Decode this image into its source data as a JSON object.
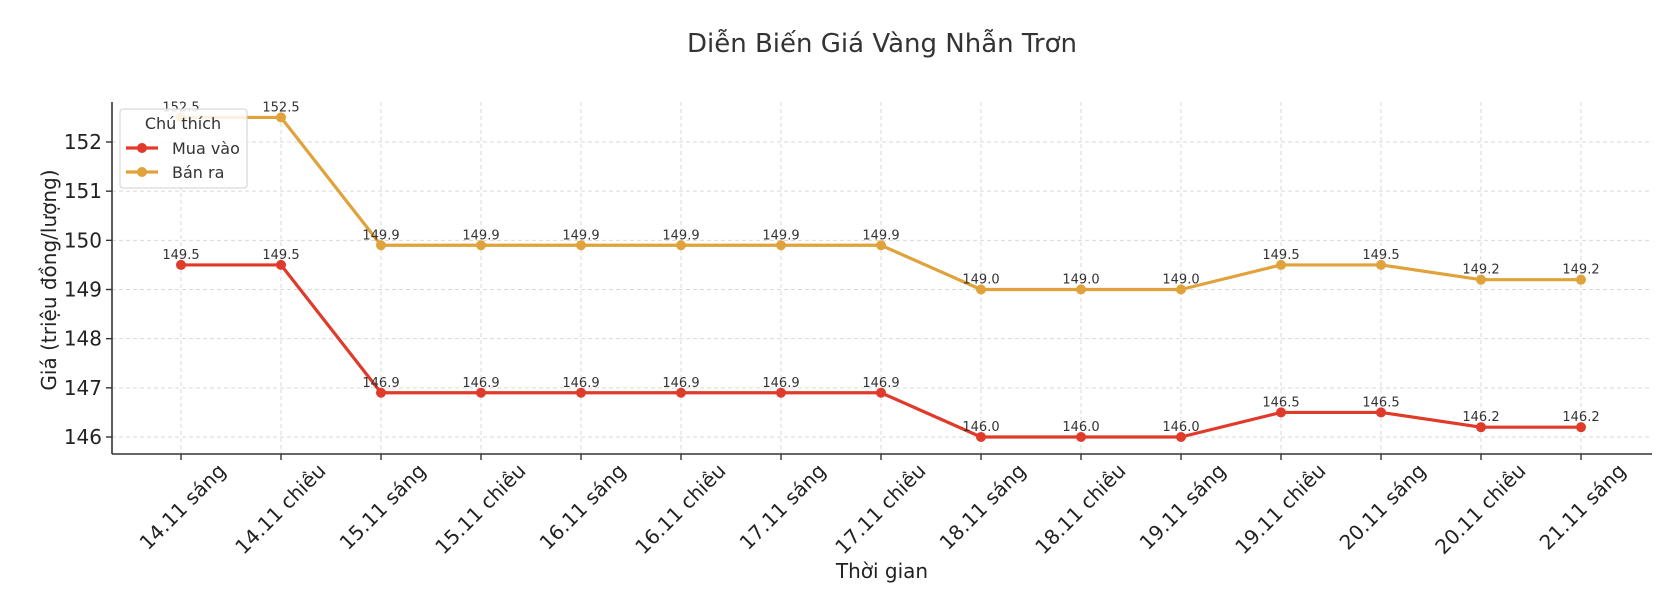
{
  "chart_data": {
    "type": "line",
    "title": "Diễn Biến Giá Vàng Nhẫn Trơn",
    "xlabel": "Thời gian",
    "ylabel": "Giá (triệu đồng/lượng)",
    "categories": [
      "14.11 sáng",
      "14.11 chiều",
      "15.11 sáng",
      "15.11 chiều",
      "16.11 sáng",
      "16.11 chiều",
      "17.11 sáng",
      "17.11 chiều",
      "18.11 sáng",
      "18.11 chiều",
      "19.11 sáng",
      "19.11 chiều",
      "20.11 sáng",
      "20.11 chiều",
      "21.11 sáng"
    ],
    "series": [
      {
        "name": "Mua vào",
        "color": "#e03a2b",
        "values": [
          149.5,
          149.5,
          146.9,
          146.9,
          146.9,
          146.9,
          146.9,
          146.9,
          146.0,
          146.0,
          146.0,
          146.5,
          146.5,
          146.2,
          146.2
        ]
      },
      {
        "name": "Bán ra",
        "color": "#e0a23a",
        "values": [
          152.5,
          152.5,
          149.9,
          149.9,
          149.9,
          149.9,
          149.9,
          149.9,
          149.0,
          149.0,
          149.0,
          149.5,
          149.5,
          149.2,
          149.2
        ]
      }
    ],
    "yticks": [
      146,
      147,
      148,
      149,
      150,
      151,
      152
    ],
    "ylim": [
      145.7,
      152.8
    ],
    "grid": true,
    "legend": {
      "title": "Chú thích",
      "position": "upper left"
    },
    "data_labels": true
  }
}
